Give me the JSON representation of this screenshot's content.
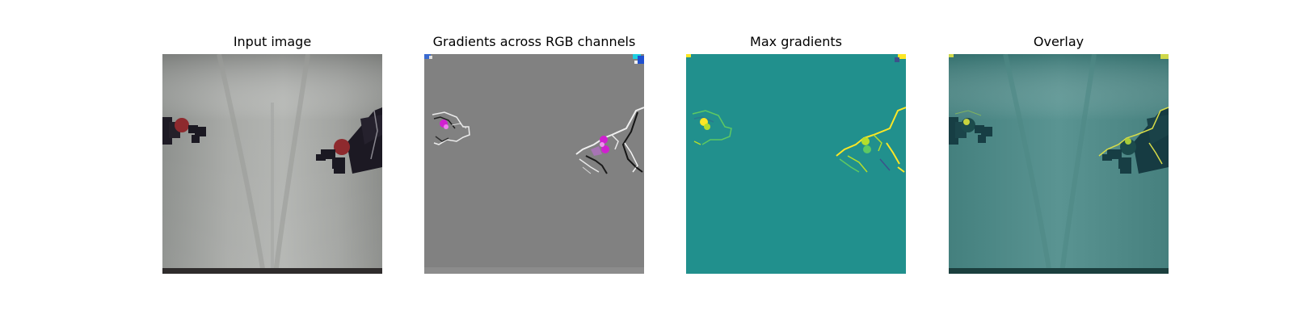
{
  "figure": {
    "panels": [
      {
        "id": "input",
        "title": "Input image"
      },
      {
        "id": "gradients",
        "title": "Gradients across RGB channels"
      },
      {
        "id": "max",
        "title": "Max gradients"
      },
      {
        "id": "overlay",
        "title": "Overlay"
      }
    ]
  },
  "colors": {
    "background": "#ffffff",
    "input_cloth": "#a6a8a5",
    "robot_dark": "#1a1822",
    "ball_red": "#8c2a2c",
    "gradient_gray": "#808080",
    "gradient_magenta": "#d020d0",
    "viridis_teal": "#21908d",
    "viridis_yellow": "#f4e61e",
    "overlay_teal": "#4f8a88"
  }
}
